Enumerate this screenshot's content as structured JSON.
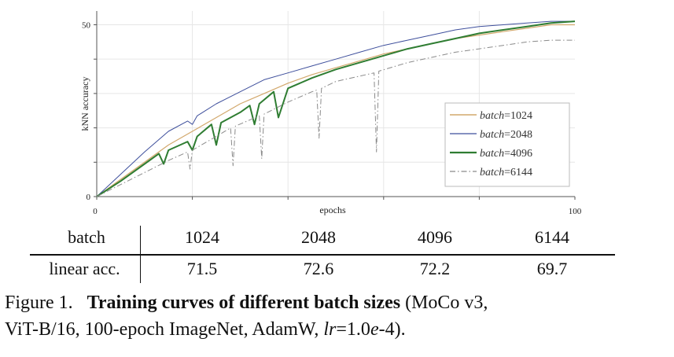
{
  "chart_data": {
    "type": "line",
    "xlabel": "epochs",
    "ylabel": "kNN accuracy",
    "xlim": [
      0,
      100
    ],
    "ylim": [
      0,
      54
    ],
    "x_ticks": [
      "0",
      "100"
    ],
    "y_ticks": [
      "0",
      "50"
    ],
    "grid": true,
    "legend_position": "bottom-right",
    "legend_prefix": "batch",
    "series": [
      {
        "name": "1024",
        "color": "#d2a86c",
        "style": "solid",
        "width": 1.2,
        "x": [
          0,
          5,
          10,
          15,
          20,
          25,
          30,
          35,
          40,
          45,
          50,
          55,
          60,
          65,
          70,
          75,
          80,
          85,
          90,
          95,
          100
        ],
        "y": [
          0,
          5,
          10,
          15,
          19,
          23,
          27,
          30,
          33,
          35.5,
          37.5,
          39.5,
          41.5,
          43,
          44.5,
          46,
          47,
          48,
          49,
          50,
          50
        ]
      },
      {
        "name": "2048",
        "color": "#3e4f9c",
        "style": "solid",
        "width": 1.0,
        "x": [
          0,
          5,
          10,
          15,
          19,
          20,
          21,
          25,
          30,
          35,
          40,
          45,
          50,
          55,
          60,
          65,
          70,
          75,
          80,
          85,
          90,
          95,
          100
        ],
        "y": [
          0,
          6.5,
          13,
          19,
          22,
          21,
          23.5,
          27,
          30.5,
          34,
          36,
          38,
          40,
          42,
          44,
          45.5,
          47,
          48.5,
          49.5,
          50,
          50.5,
          51,
          51
        ]
      },
      {
        "name": "4096",
        "color": "#2f7d32",
        "style": "solid",
        "width": 2.0,
        "x": [
          0,
          5,
          10,
          13,
          14,
          15,
          19,
          20,
          21,
          24,
          25,
          26,
          30,
          32,
          33,
          34,
          37,
          38,
          40,
          45,
          50,
          55,
          60,
          65,
          70,
          75,
          80,
          85,
          90,
          95,
          100
        ],
        "y": [
          0,
          4.5,
          9.5,
          12.5,
          9.5,
          13.5,
          16,
          13.5,
          17.5,
          21,
          15,
          21.5,
          24.5,
          26.5,
          21,
          27,
          30.5,
          23,
          31.5,
          34.5,
          37,
          39,
          41,
          43,
          44.5,
          46,
          47.5,
          48.5,
          49.5,
          50.5,
          51
        ]
      },
      {
        "name": "6144",
        "color": "#8a8a8a",
        "style": "dashdot",
        "width": 1.0,
        "x": [
          0,
          5,
          10,
          15,
          19,
          19.5,
          20,
          25,
          28,
          28.5,
          29,
          34,
          34.5,
          35,
          40,
          45,
          46,
          46.5,
          47,
          50,
          58,
          58.5,
          59,
          65,
          70,
          75,
          80,
          85,
          90,
          95,
          100
        ],
        "y": [
          0,
          3.5,
          7,
          10.5,
          13,
          8,
          13.5,
          17.5,
          20,
          9,
          20.5,
          23.5,
          11,
          24,
          27.5,
          30.5,
          31,
          17,
          31.5,
          33.5,
          36,
          13,
          36.5,
          39,
          40.5,
          42,
          43,
          44,
          45,
          45.5,
          45.5
        ]
      }
    ]
  },
  "table": {
    "row_headers": [
      "batch",
      "linear acc."
    ],
    "batch_values": [
      "1024",
      "2048",
      "4096",
      "6144"
    ],
    "acc_values": [
      "71.5",
      "72.6",
      "72.2",
      "69.7"
    ]
  },
  "caption": {
    "label": "Figure 1.",
    "bold_text": "Training curves of different batch sizes",
    "line1_rest": " (MoCo v3,",
    "line2_pre": "ViT-B/16, 100-epoch ImageNet, AdamW, ",
    "lr_var": "lr",
    "lr_eq": "=1.0",
    "lr_e": "e",
    "lr_end": "-4)."
  }
}
